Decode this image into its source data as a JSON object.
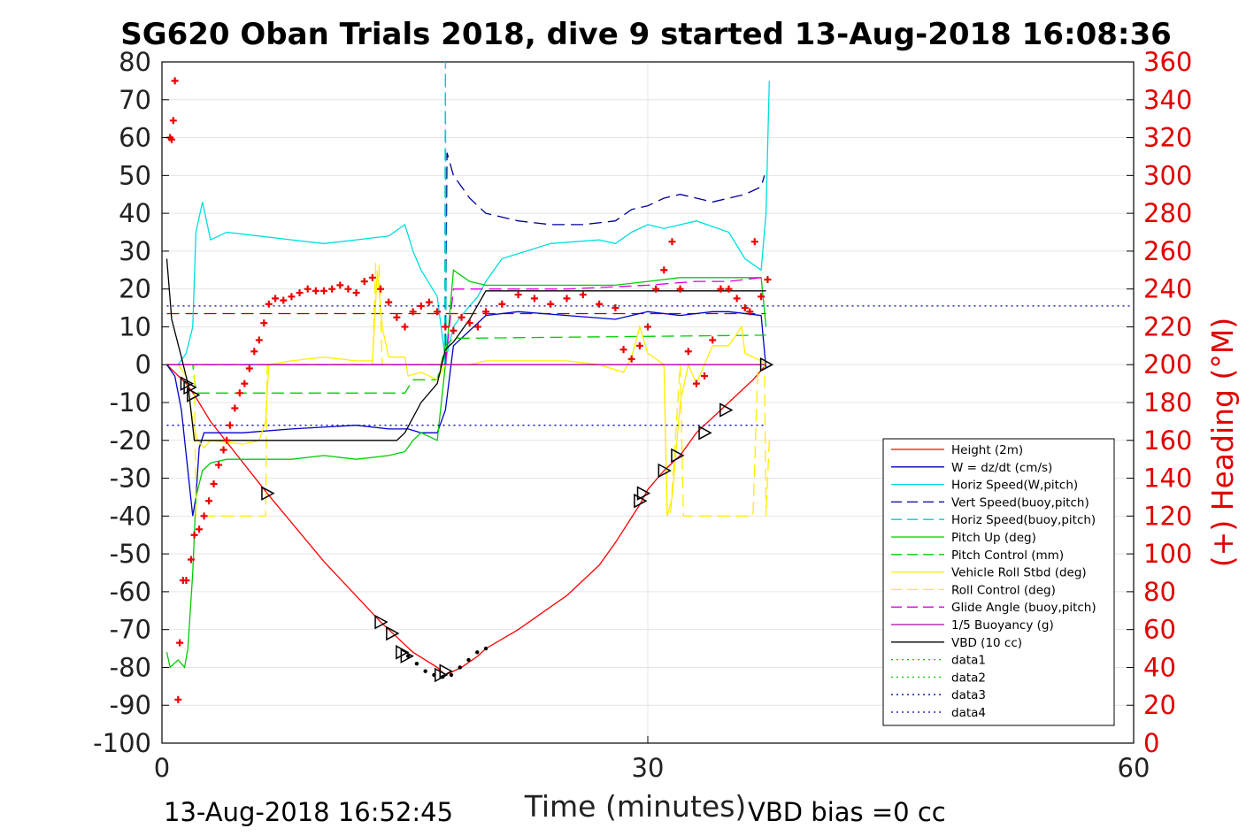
{
  "chart_data": {
    "type": "line",
    "title": "SG620 Oban Trials 2018, dive 9 started 13-Aug-2018 16:08:36",
    "xlabel": "Time (minutes)",
    "ylabel_right": "(+) Heading (°M)",
    "xlim": [
      0,
      60
    ],
    "ylim": [
      -100,
      80
    ],
    "y2lim": [
      0,
      360
    ],
    "x_ticks": [
      "0",
      "30",
      "60"
    ],
    "y_ticks": [
      "80",
      "70",
      "60",
      "50",
      "40",
      "30",
      "20",
      "10",
      "0",
      "-10",
      "-20",
      "-30",
      "-40",
      "-50",
      "-60",
      "-70",
      "-80",
      "-90",
      "-100"
    ],
    "y2_ticks": [
      "360",
      "340",
      "320",
      "300",
      "280",
      "260",
      "240",
      "220",
      "200",
      "180",
      "160",
      "140",
      "120",
      "100",
      "80",
      "60",
      "40",
      "20",
      "0"
    ],
    "grid": true,
    "legend_position": "lower-right",
    "footer_left": "13-Aug-2018 16:52:45",
    "footer_right": "VBD bias =0 cc",
    "series": [
      {
        "name": "Height (2m)",
        "color": "#ff0000",
        "style": "solid",
        "x": [
          0.3,
          1.5,
          2,
          3,
          6.5,
          10,
          13.5,
          14.5,
          15.5,
          17,
          17.5,
          18.5,
          19.5,
          20,
          22,
          25,
          27,
          28,
          29.5,
          30,
          31,
          32,
          33,
          34.5,
          35.5,
          36.5,
          37.3
        ],
        "y": [
          0,
          -5,
          -8,
          -15,
          -34,
          -52,
          -68,
          -72,
          -76,
          -80,
          -82,
          -80,
          -77,
          -75,
          -70,
          -61,
          -53,
          -47,
          -37,
          -33,
          -28,
          -24,
          -18,
          -12,
          -8,
          -4,
          0
        ]
      },
      {
        "name": "W = dz/dt (cm/s)",
        "color": "#0000cc",
        "style": "solid",
        "x": [
          0.3,
          0.8,
          1.2,
          1.6,
          1.9,
          2.1,
          2.3,
          2.6,
          3,
          5,
          8,
          12,
          14,
          15.2,
          16,
          17,
          17.5,
          18,
          20,
          22,
          25,
          28,
          29,
          30,
          32,
          34,
          35,
          37,
          37.3
        ],
        "y": [
          0,
          -3,
          -12,
          -28,
          -40,
          -35,
          -22,
          -18,
          -18,
          -18,
          -17,
          -16,
          -17,
          -17,
          -18,
          -18,
          -12,
          5,
          13,
          14,
          13,
          12,
          13,
          14,
          13,
          14,
          14,
          13,
          -1
        ]
      },
      {
        "name": "Horiz Speed(W,pitch)",
        "color": "#00dddd",
        "style": "solid",
        "x": [
          0.3,
          1,
          1.5,
          1.9,
          2.1,
          2.5,
          3,
          4,
          6,
          8,
          10,
          12,
          14,
          15,
          15.5,
          16,
          17,
          17.5,
          18,
          18.5,
          19.5,
          20,
          21,
          24,
          27,
          28,
          29,
          30,
          31,
          33,
          35,
          36,
          37,
          37.3,
          37.5
        ],
        "y": [
          0,
          0,
          3,
          10,
          35,
          43,
          33,
          35,
          34,
          33,
          32,
          33,
          34,
          37,
          30,
          25,
          18,
          1,
          10,
          13,
          18,
          22,
          28,
          32,
          33,
          32,
          35,
          37,
          36,
          38,
          35,
          28,
          25,
          40,
          75
        ]
      },
      {
        "name": "Vert Speed(buoy,pitch)",
        "color": "#00009a",
        "style": "dashed",
        "x": [
          17.5,
          17.6,
          18,
          19,
          20,
          22,
          24,
          26,
          28,
          29,
          30,
          31,
          32,
          33,
          34,
          35,
          36,
          37,
          37.2
        ],
        "y": [
          0,
          56,
          50,
          44,
          40,
          38,
          37,
          37,
          38,
          41,
          42,
          44,
          45,
          44,
          43,
          44,
          45,
          47,
          50
        ]
      },
      {
        "name": "Horiz Speed(buoy,pitch)",
        "color": "#00cccc",
        "style": "dashed",
        "x": [
          17.45,
          17.5,
          17.55
        ],
        "y": [
          0,
          80,
          0
        ]
      },
      {
        "name": "Pitch Up (deg)",
        "color": "#00cc00",
        "style": "solid",
        "x": [
          0.3,
          0.5,
          1,
          1.4,
          1.6,
          1.9,
          2.1,
          2.5,
          3,
          4,
          6,
          8,
          10,
          12,
          14,
          15,
          15.5,
          16,
          17,
          17.5,
          18,
          19,
          20,
          22,
          25,
          28,
          30,
          32,
          35,
          37,
          37.3
        ],
        "y": [
          -76,
          -80,
          -78,
          -80,
          -75,
          -55,
          -35,
          -28,
          -26,
          -25,
          -25,
          -25,
          -24,
          -25,
          -24,
          -23,
          -20,
          -18,
          -20,
          0,
          25,
          22,
          21,
          21,
          21,
          21,
          22,
          23,
          23,
          23,
          10
        ]
      },
      {
        "name": "Pitch Control (mm)",
        "color": "#00cc00",
        "style": "dashed",
        "x": [
          0.3,
          1.9,
          2.1,
          10,
          15,
          15.5,
          17,
          17.5,
          18,
          19,
          37.3
        ],
        "y": [
          0,
          0,
          -7.5,
          -7.5,
          -7.5,
          -4,
          -4,
          5,
          7,
          7,
          7.8
        ]
      },
      {
        "name": "Vehicle Roll Stbd (deg)",
        "color": "#ffee00",
        "style": "solid",
        "x": [
          0.3,
          1,
          1.5,
          1.9,
          2.2,
          2.6,
          3,
          5,
          6,
          6.4,
          6.6,
          8,
          10,
          12,
          13,
          13.3,
          13.6,
          14,
          15,
          15.2,
          16,
          17,
          17.5,
          18,
          19,
          20,
          22,
          25,
          27,
          28.5,
          29,
          29.5,
          30,
          31,
          31.2,
          31.5,
          32,
          32.5,
          33,
          34,
          35,
          35.8,
          36,
          37,
          37.3
        ],
        "y": [
          0,
          0,
          -3,
          -15,
          -20,
          -22,
          -20,
          -21,
          -20,
          -15,
          0,
          1,
          2,
          1,
          1,
          25,
          10,
          2,
          2,
          -3,
          -2,
          -4,
          0,
          0,
          0,
          1,
          1,
          1,
          0,
          -2,
          2,
          10,
          3,
          0,
          -40,
          -35,
          -10,
          0,
          -5,
          5,
          5,
          10,
          3,
          1,
          0
        ]
      },
      {
        "name": "Roll Control (deg)",
        "color": "#ffee00",
        "style": "dashed",
        "x": [
          0.3,
          2,
          2.1,
          3,
          5,
          6.4,
          6.5,
          7,
          13,
          13.2,
          13.4,
          13.6,
          14,
          30,
          31,
          31.2,
          31.4,
          32,
          32.2,
          36.5,
          36.8,
          37.2,
          37.3,
          37.5
        ],
        "y": [
          0,
          0,
          -40,
          -40,
          -40,
          -40,
          0,
          0,
          0,
          27,
          27,
          0,
          0,
          0,
          0,
          -40,
          -40,
          0,
          -40,
          -40,
          0,
          0,
          -40,
          -20
        ]
      },
      {
        "name": "Glide Angle (buoy,pitch)",
        "color": "#dd00dd",
        "style": "dashed",
        "x": [
          0.3,
          17.5,
          18,
          25,
          30,
          33,
          35,
          37
        ],
        "y": [
          0,
          0,
          20,
          20,
          21,
          22,
          22,
          23
        ]
      },
      {
        "name": "1/5 Buoyancy (g)",
        "color": "#aa00aa",
        "style": "solid",
        "x": [
          0.3,
          37.3
        ],
        "y": [
          0,
          0
        ]
      },
      {
        "name": "VBD (10 cc)",
        "color": "#000000",
        "style": "solid",
        "x": [
          0.3,
          0.6,
          1.2,
          1.6,
          2,
          10,
          14.5,
          15,
          16,
          17,
          17.5,
          18,
          19,
          20,
          25,
          30,
          37.3
        ],
        "y": [
          28,
          12,
          2,
          -5,
          -20,
          -20,
          -20,
          -18,
          -10,
          -5,
          4,
          6,
          12,
          19.5,
          19.5,
          19.5,
          19.5
        ]
      },
      {
        "name": "data1",
        "color": "#00cc00",
        "style": "dotted",
        "x": [],
        "y": []
      },
      {
        "name": "data2",
        "color": "#00cc00",
        "style": "dotted",
        "x": [],
        "y": []
      },
      {
        "name": "data3",
        "color": "#00009a",
        "style": "dotted",
        "x": [
          0.3,
          60
        ],
        "y": [
          15.5,
          15.5
        ]
      },
      {
        "name": "data4",
        "color": "#0000cc",
        "style": "dotted",
        "x": [
          0.3,
          37.3
        ],
        "y": [
          -16,
          -16
        ]
      }
    ],
    "extra_lines": [
      {
        "color": "#aa0000",
        "style": "dashed",
        "x": [
          0.3,
          37.3
        ],
        "y": [
          13.5,
          13.5
        ]
      }
    ],
    "heading_markers": {
      "color": "#ee0000",
      "x": [
        0.5,
        0.6,
        0.7,
        0.8,
        1.0,
        1.1,
        1.3,
        1.5,
        1.8,
        2.0,
        2.3,
        2.6,
        2.9,
        3.2,
        3.5,
        3.8,
        4.0,
        4.2,
        4.5,
        4.8,
        5.1,
        5.4,
        5.7,
        6.0,
        6.3,
        6.6,
        7.0,
        7.5,
        8,
        8.5,
        9,
        9.5,
        10,
        10.5,
        11,
        11.5,
        12,
        12.5,
        13,
        13.5,
        14,
        14.5,
        15,
        15.5,
        16,
        16.5,
        17,
        17.5,
        18,
        18.5,
        19,
        19.5,
        20,
        21,
        22,
        23,
        24,
        25,
        26,
        27,
        28,
        28.5,
        29,
        29.5,
        30,
        30.5,
        31,
        31.5,
        32,
        32.5,
        33,
        33.5,
        34,
        34.5,
        35,
        35.5,
        36,
        36.3,
        36.6,
        37,
        37.4
      ],
      "y": [
        320,
        319,
        329,
        350,
        23,
        53,
        86,
        86,
        97,
        110,
        113,
        120,
        128,
        137,
        147,
        155,
        160,
        168,
        177,
        185,
        190,
        198,
        207,
        213,
        222,
        232,
        235,
        234,
        236,
        238,
        240,
        239,
        239,
        240,
        242,
        240,
        238,
        244,
        246,
        240,
        233,
        225,
        220,
        228,
        231,
        233,
        228,
        220,
        218,
        225,
        222,
        220,
        228,
        232,
        237,
        235,
        232,
        235,
        237,
        232,
        230,
        208,
        203,
        210,
        220,
        240,
        250,
        265,
        240,
        207,
        190,
        194,
        213,
        240,
        240,
        235,
        230,
        228,
        265,
        236,
        245
      ]
    },
    "triangle_markers": {
      "x": [
        1.5,
        1.7,
        1.9,
        6.5,
        13.5,
        14.2,
        14.8,
        15.1,
        17.2,
        17.5,
        29.5,
        29.7,
        31,
        31.8,
        33.5,
        34.8,
        37.3
      ],
      "y": [
        -5,
        -6,
        -8,
        -34,
        -68,
        -71,
        -76,
        -77,
        -82,
        -81,
        -36,
        -34,
        -28,
        -24,
        -18,
        -12,
        0
      ]
    },
    "dot_markers": {
      "x_start": 15.2,
      "x_end": 20.0,
      "y": [
        -77,
        -79,
        -81,
        -82,
        -82.5,
        -82,
        -80,
        -78,
        -76,
        -75
      ]
    }
  }
}
